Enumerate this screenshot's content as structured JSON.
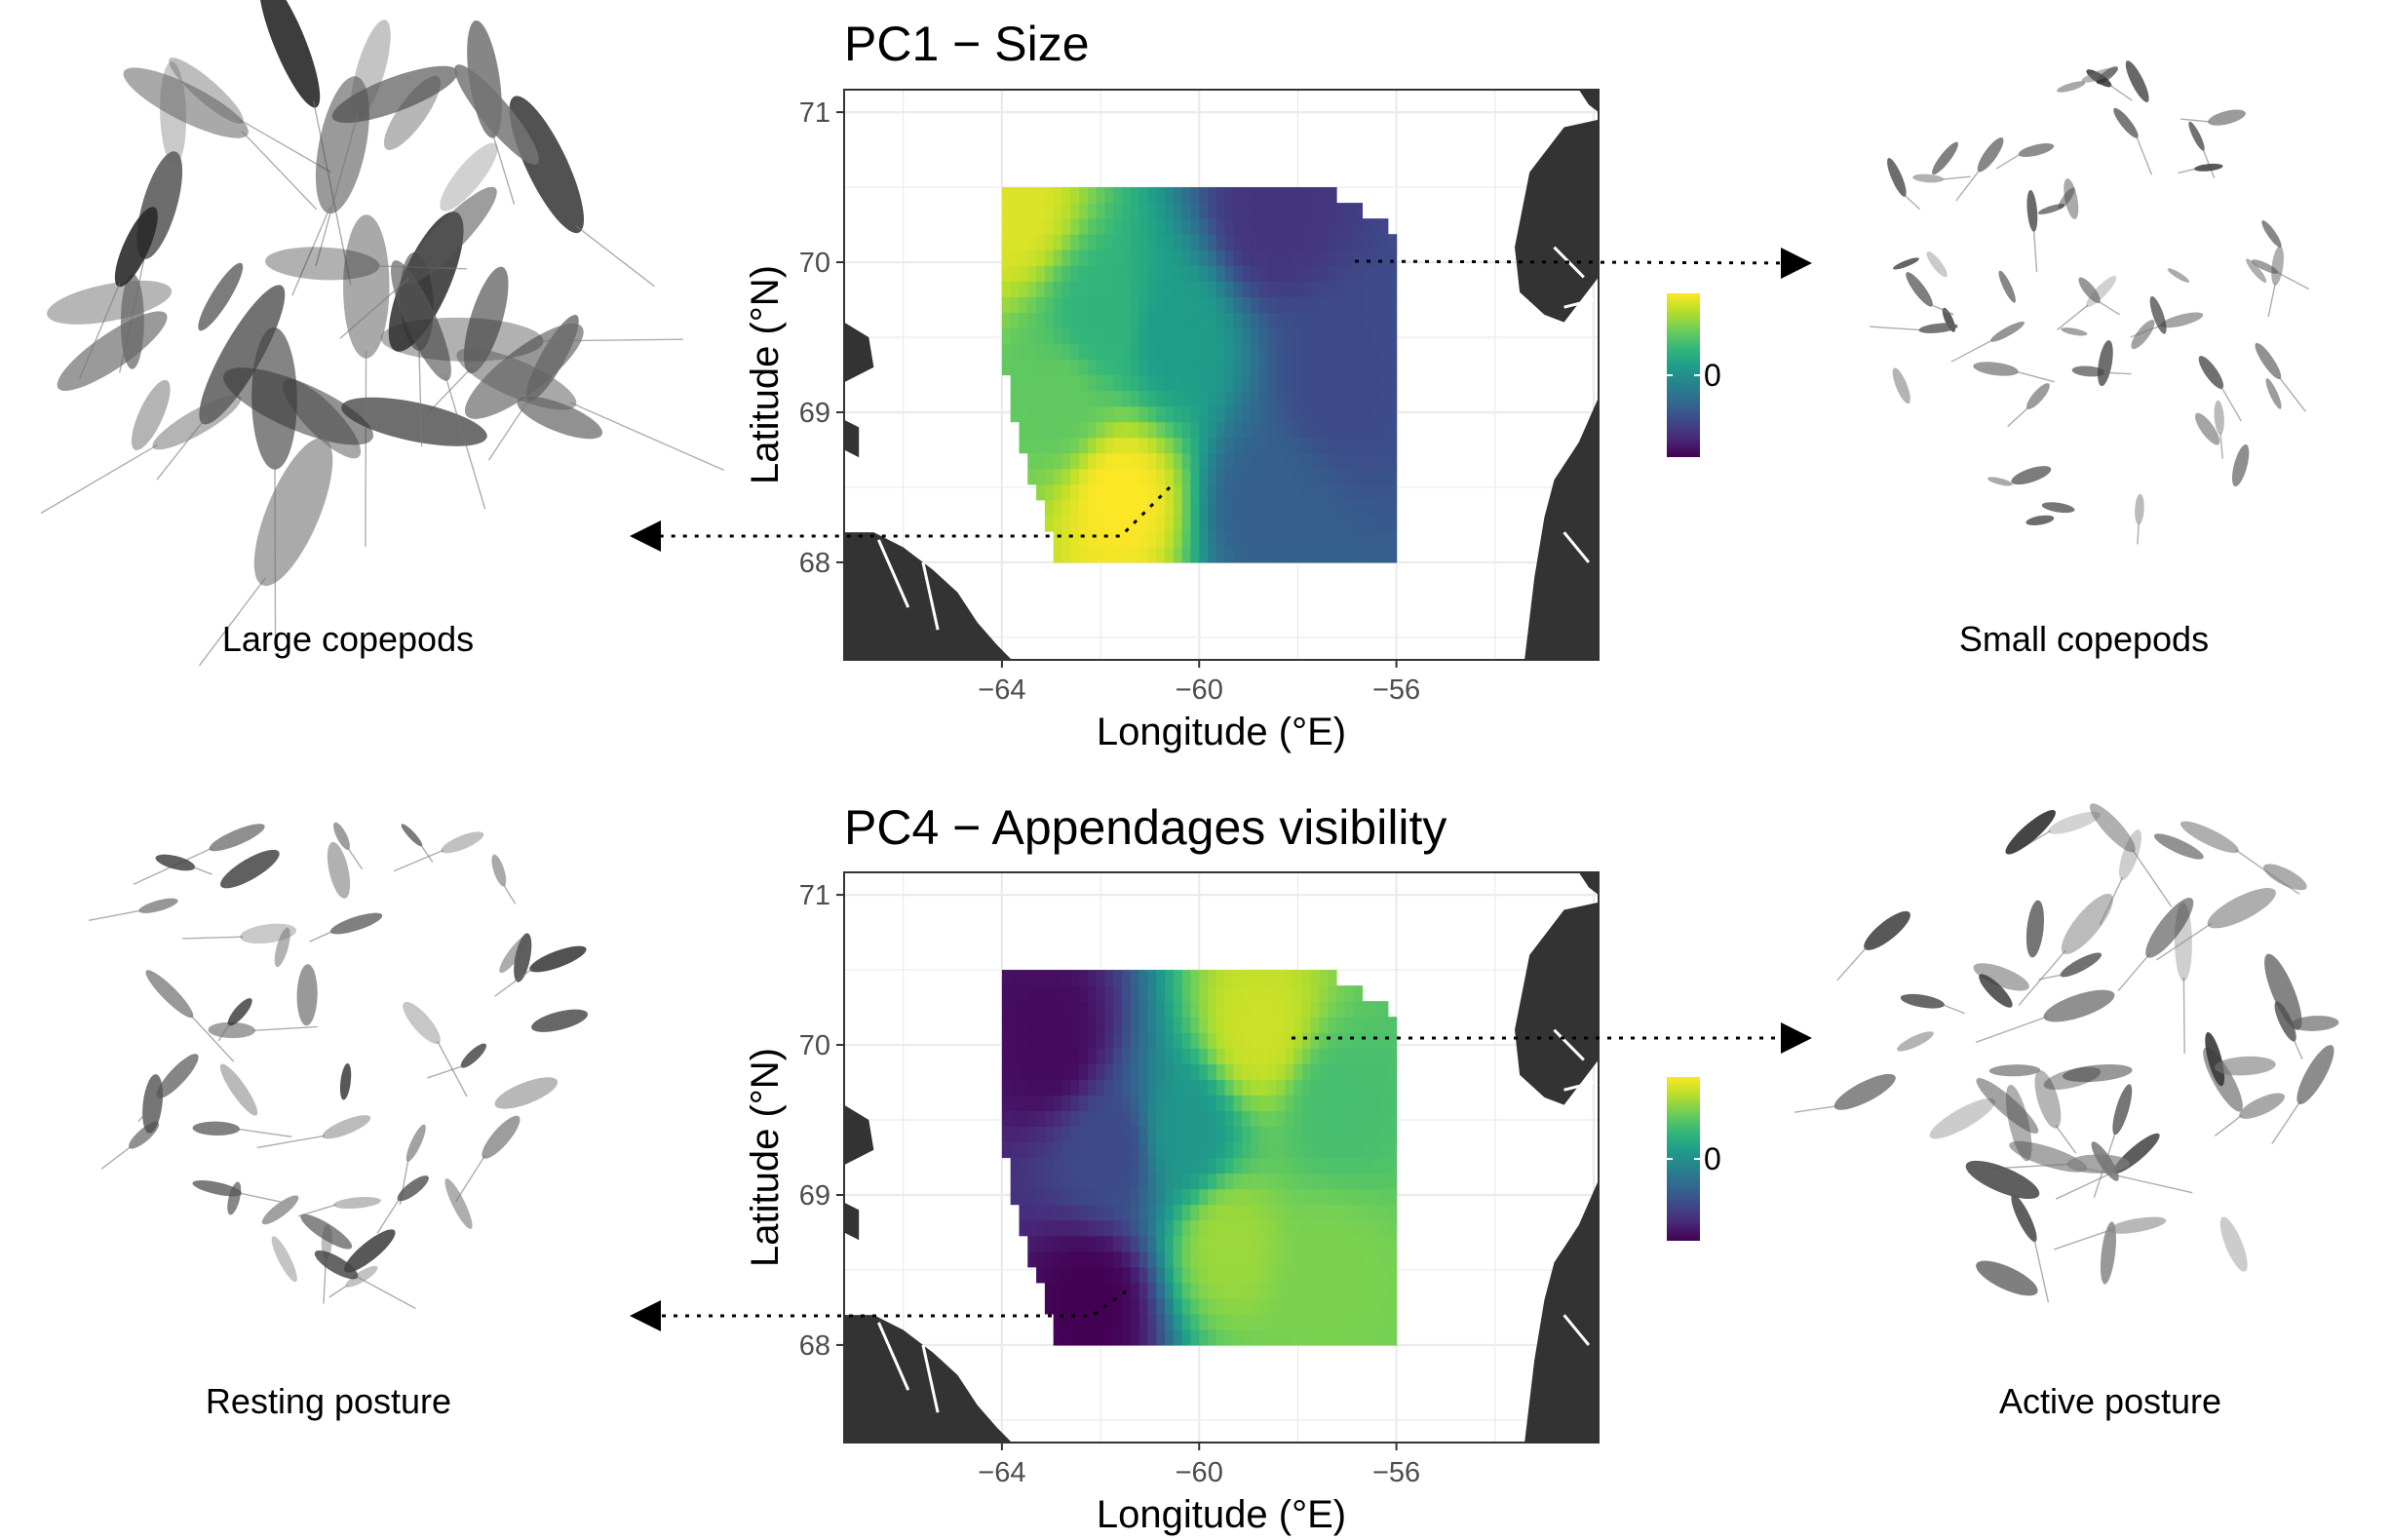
{
  "colors": {
    "land": "#333333",
    "grid": "#ebebeb",
    "panel_border": "#333333",
    "viridis": [
      "#440154",
      "#482878",
      "#3e4989",
      "#31688e",
      "#26828e",
      "#1f9e89",
      "#35b779",
      "#6ece58",
      "#b5de2b",
      "#fde725"
    ]
  },
  "icons": [
    "copepod-image-mosaic",
    "dotted-arrow"
  ],
  "chart_data": [
    {
      "type": "heatmap",
      "title": "PC1 − Size",
      "xlabel": "Longitude (°E)",
      "ylabel": "Latitude (°N)",
      "xlim": [
        -67.2,
        -51.9
      ],
      "ylim": [
        67.35,
        71.15
      ],
      "xticks": [
        -64,
        -60,
        -56
      ],
      "yticks": [
        68,
        69,
        70,
        71
      ],
      "xtick_labels": [
        "−64",
        "−60",
        "−56"
      ],
      "yticks_labels": [
        "68",
        "69",
        "70",
        "71"
      ],
      "legend": {
        "position": "right",
        "labels": [
          "0"
        ],
        "value_range": [
          -1,
          1
        ]
      },
      "grid": true,
      "field_extent": {
        "lon": [
          -64,
          -56
        ],
        "lat": [
          68,
          70.5
        ]
      },
      "field_samples": [
        {
          "lon": -63.8,
          "lat": 70.35,
          "value": 0.9
        },
        {
          "lon": -62.0,
          "lat": 69.6,
          "value": 0.3
        },
        {
          "lon": -62.8,
          "lat": 69.1,
          "value": 0.5
        },
        {
          "lon": -61.6,
          "lat": 68.45,
          "value": 1.0
        },
        {
          "lon": -60.5,
          "lat": 69.5,
          "value": 0.1
        },
        {
          "lon": -58.5,
          "lat": 70.3,
          "value": -0.7
        },
        {
          "lon": -57.2,
          "lat": 69.2,
          "value": -0.55
        },
        {
          "lon": -58.6,
          "lat": 68.4,
          "value": -0.4
        }
      ],
      "left_label": "Large copepods",
      "right_label": "Small copepods"
    },
    {
      "type": "heatmap",
      "title": "PC4 − Appendages visibility",
      "xlabel": "Longitude (°E)",
      "ylabel": "Latitude (°N)",
      "xlim": [
        -67.2,
        -51.9
      ],
      "ylim": [
        67.35,
        71.15
      ],
      "xticks": [
        -64,
        -60,
        -56
      ],
      "yticks": [
        68,
        69,
        70,
        71
      ],
      "xtick_labels": [
        "−64",
        "−60",
        "−56"
      ],
      "yticks_labels": [
        "68",
        "69",
        "70",
        "71"
      ],
      "legend": {
        "position": "right",
        "labels": [
          "0"
        ],
        "value_range": [
          -1,
          1
        ]
      },
      "grid": true,
      "field_extent": {
        "lon": [
          -64,
          -56
        ],
        "lat": [
          68,
          70.5
        ]
      },
      "field_samples": [
        {
          "lon": -63.0,
          "lat": 70.0,
          "value": -0.95
        },
        {
          "lon": -62.2,
          "lat": 68.3,
          "value": -1.0
        },
        {
          "lon": -61.8,
          "lat": 69.3,
          "value": -0.55
        },
        {
          "lon": -58.8,
          "lat": 70.1,
          "value": 0.85
        },
        {
          "lon": -59.4,
          "lat": 68.7,
          "value": 0.7
        },
        {
          "lon": -57.4,
          "lat": 68.5,
          "value": 0.6
        },
        {
          "lon": -57.2,
          "lat": 69.6,
          "value": 0.4
        },
        {
          "lon": -60.3,
          "lat": 69.4,
          "value": 0.05
        }
      ],
      "left_label": "Resting posture",
      "right_label": "Active posture"
    }
  ]
}
